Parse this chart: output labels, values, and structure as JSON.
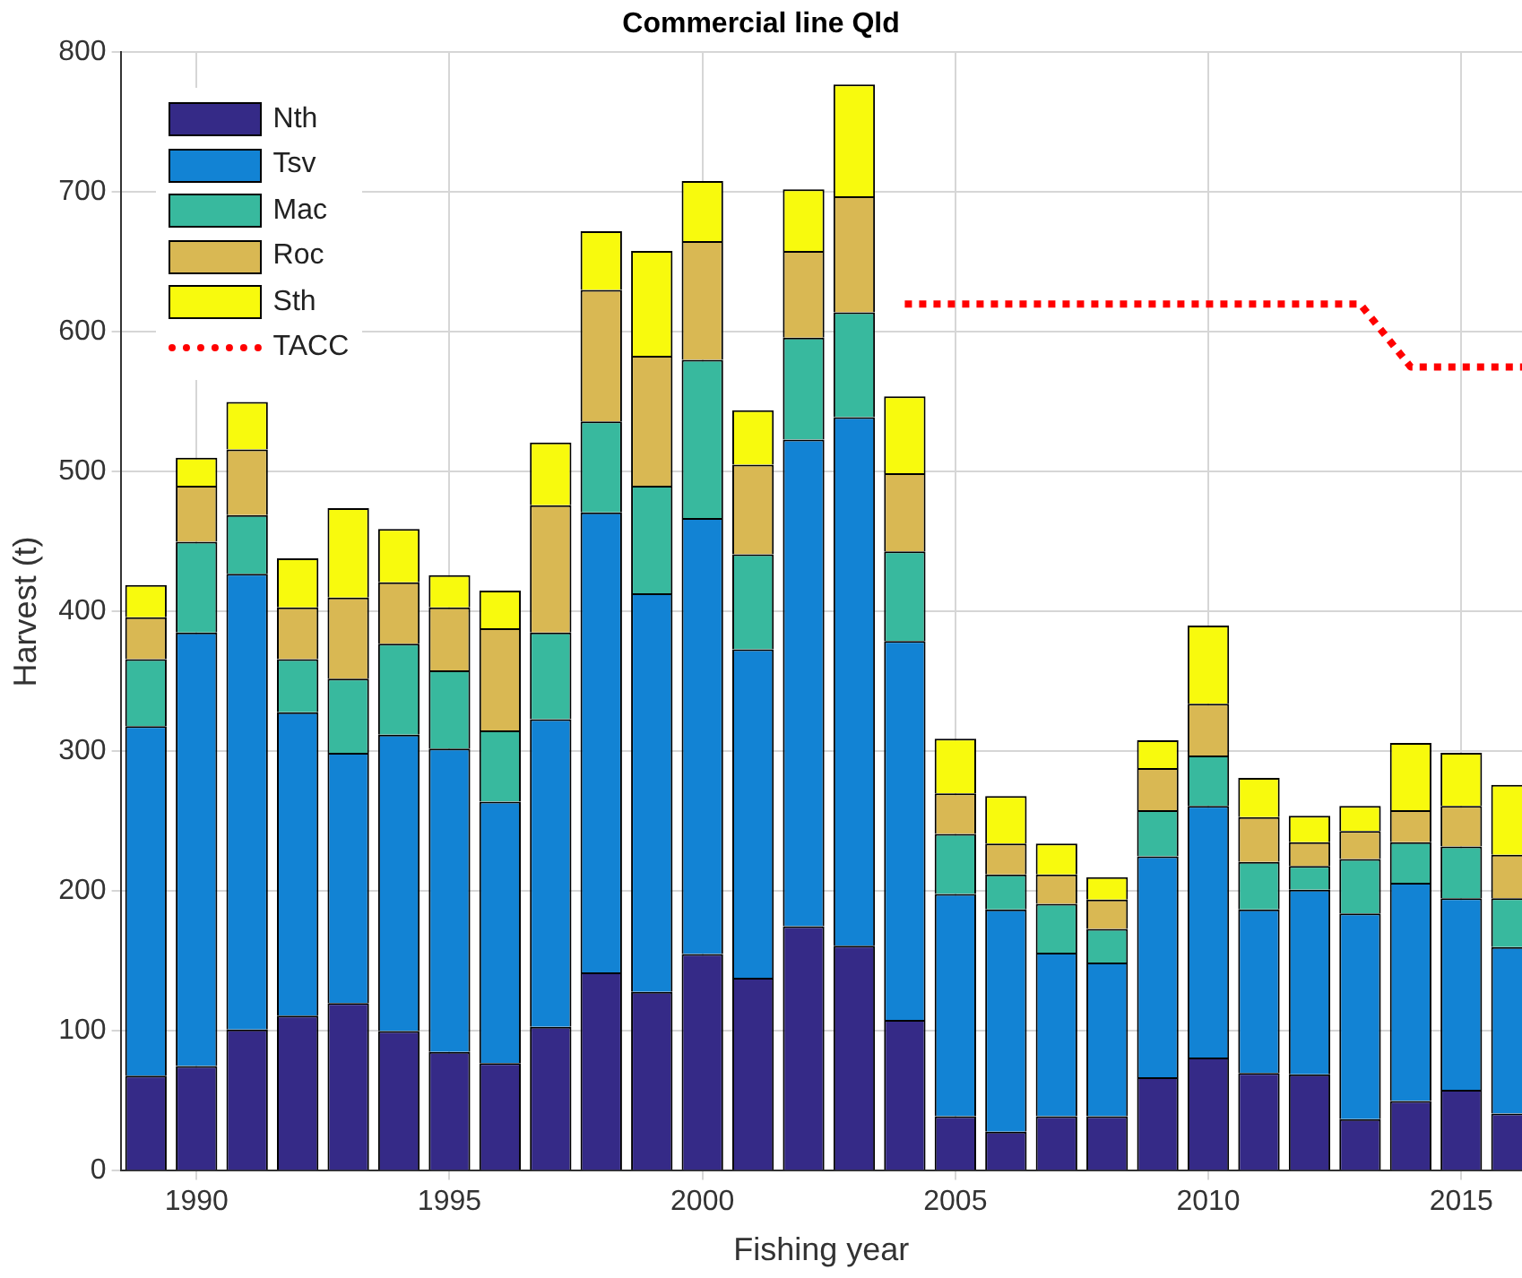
{
  "chart_data": {
    "type": "bar",
    "title": "Commercial line Qld",
    "xlabel": "Fishing year",
    "ylabel": "Harvest (t)",
    "stacked": true,
    "x": [
      1989,
      1990,
      1991,
      1992,
      1993,
      1994,
      1995,
      1996,
      1997,
      1998,
      1999,
      2000,
      2001,
      2002,
      2003,
      2004,
      2005,
      2006,
      2007,
      2008,
      2009,
      2010,
      2011,
      2012,
      2013,
      2014,
      2015,
      2016
    ],
    "series": [
      {
        "name": "Nth",
        "color": "#352a87",
        "values": [
          68,
          75,
          101,
          111,
          120,
          100,
          85,
          77,
          103,
          142,
          128,
          155,
          138,
          175,
          161,
          108,
          39,
          28,
          39,
          39,
          67,
          81,
          70,
          69,
          37,
          50,
          58,
          41
        ]
      },
      {
        "name": "Tsv",
        "color": "#1283d4",
        "values": [
          250,
          310,
          326,
          217,
          179,
          212,
          217,
          187,
          220,
          329,
          285,
          312,
          235,
          348,
          378,
          271,
          159,
          159,
          117,
          110,
          158,
          180,
          117,
          132,
          147,
          156,
          137,
          119
        ]
      },
      {
        "name": "Mac",
        "color": "#38b99e",
        "values": [
          48,
          65,
          42,
          38,
          53,
          65,
          56,
          51,
          62,
          65,
          77,
          113,
          68,
          73,
          75,
          64,
          43,
          25,
          35,
          24,
          33,
          36,
          34,
          17,
          39,
          29,
          37,
          35
        ]
      },
      {
        "name": "Roc",
        "color": "#d9b853",
        "values": [
          30,
          40,
          47,
          37,
          58,
          44,
          45,
          73,
          91,
          94,
          93,
          85,
          64,
          62,
          83,
          56,
          29,
          22,
          21,
          21,
          30,
          37,
          32,
          17,
          20,
          23,
          29,
          31
        ]
      },
      {
        "name": "Sth",
        "color": "#f8fa0d",
        "values": [
          23,
          20,
          34,
          35,
          64,
          38,
          23,
          27,
          45,
          42,
          75,
          43,
          39,
          44,
          80,
          55,
          39,
          34,
          22,
          16,
          20,
          56,
          28,
          19,
          18,
          48,
          38,
          50
        ]
      },
      {
        "name": "TACC",
        "type": "line",
        "color": "#ff0000",
        "line_style": "dotted",
        "marker": "none",
        "x": [
          2004,
          2013,
          2014,
          2016.2
        ],
        "values": [
          620,
          620,
          575,
          575
        ]
      }
    ],
    "xlim": [
      1988.5,
      2016.2
    ],
    "xticks": [
      1990,
      1995,
      2000,
      2005,
      2010,
      2015
    ],
    "ylim": [
      0,
      800
    ],
    "yticks": [
      0,
      100,
      200,
      300,
      400,
      500,
      600,
      700,
      800
    ],
    "grid": true,
    "legend": "top left"
  }
}
